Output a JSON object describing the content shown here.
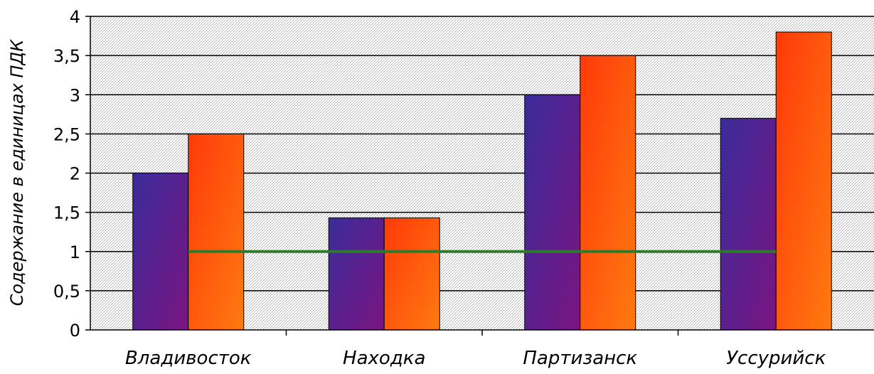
{
  "chart_data": {
    "type": "bar",
    "categories": [
      "Владивосток",
      "Находка",
      "Партизанск",
      "Уссурийск"
    ],
    "series": [
      {
        "values": [
          2.0,
          1.43,
          3.0,
          2.7
        ]
      },
      {
        "values": [
          2.5,
          1.43,
          3.5,
          3.8
        ]
      }
    ],
    "reference_line": {
      "y": 1
    },
    "ylabel": "Содержание в единицах ПДК",
    "xlabel": "",
    "title": "",
    "ylim": [
      0,
      4
    ],
    "yticks": [
      0,
      0.5,
      1,
      1.5,
      2,
      2.5,
      3,
      3.5,
      4
    ],
    "ytick_labels": [
      "0",
      "0,5",
      "1",
      "1,5",
      "2",
      "2,5",
      "3",
      "3,5",
      "4"
    ],
    "grid": true,
    "legend": "none",
    "colors": {
      "series_1_light": "#3a2c9a",
      "series_1_dark": "#7a1480",
      "series_2_light": "#ff3a0a",
      "series_2_dark": "#ff7a10",
      "reference_line": "#2e7a2a",
      "gridline": "#000000",
      "plot_background": "#c8c8c8"
    }
  }
}
